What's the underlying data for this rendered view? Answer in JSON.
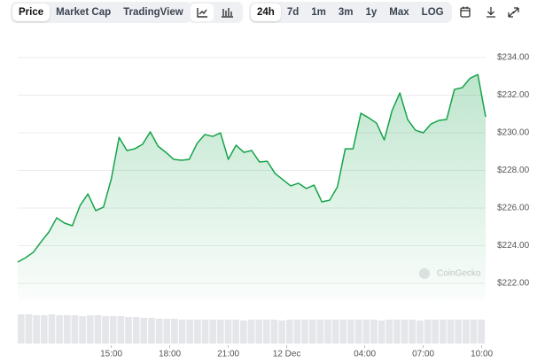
{
  "toolbar": {
    "views": [
      "Price",
      "Market Cap",
      "TradingView"
    ],
    "active_view": 0,
    "ranges": [
      "24h",
      "7d",
      "1m",
      "3m",
      "1y",
      "Max",
      "LOG"
    ],
    "active_range": 0
  },
  "chart_data": {
    "type": "area",
    "watermark": "CoinGecko",
    "color": "#16a34a",
    "x": [
      10.2,
      10.6,
      11.0,
      11.4,
      11.8,
      12.2,
      12.6,
      13.0,
      13.4,
      13.8,
      14.2,
      14.6,
      15.0,
      15.4,
      15.8,
      16.2,
      16.6,
      17.0,
      17.4,
      17.8,
      18.2,
      18.6,
      19.0,
      19.4,
      19.8,
      20.2,
      20.6,
      21.0,
      21.4,
      21.8,
      22.2,
      22.6,
      23.0,
      23.4,
      23.8,
      24.2,
      24.6,
      25.0,
      25.4,
      25.8,
      26.2,
      26.6,
      27.0,
      27.4,
      27.8,
      28.2,
      28.6,
      29.0,
      29.4,
      29.8,
      30.2,
      30.6,
      31.0,
      31.4,
      31.8,
      32.2,
      32.6,
      33.0,
      33.4,
      33.8,
      34.2
    ],
    "values": [
      223.13,
      223.36,
      223.65,
      224.21,
      224.73,
      225.48,
      225.2,
      225.06,
      226.14,
      226.75,
      225.86,
      226.05,
      227.55,
      229.76,
      229.06,
      229.15,
      229.39,
      230.05,
      229.29,
      228.96,
      228.59,
      228.54,
      228.59,
      229.44,
      229.91,
      229.81,
      230.0,
      228.59,
      229.34,
      228.96,
      229.06,
      228.45,
      228.49,
      227.84,
      227.51,
      227.18,
      227.32,
      227.04,
      227.22,
      226.33,
      226.42,
      227.13,
      229.15,
      229.15,
      231.04,
      230.8,
      230.52,
      229.62,
      231.18,
      232.12,
      230.71,
      230.14,
      230.0,
      230.47,
      230.66,
      230.71,
      232.31,
      232.4,
      232.9,
      233.1,
      230.85
    ],
    "volume": [
      33,
      33,
      32,
      32,
      33,
      32,
      32,
      32,
      31,
      32,
      32,
      31,
      31,
      31,
      30,
      30,
      29,
      29,
      28,
      28,
      28,
      27,
      27,
      27,
      27,
      27,
      27,
      27,
      27,
      26,
      27,
      27,
      27,
      27,
      26,
      27,
      27,
      27,
      27,
      27,
      27,
      27,
      27,
      27,
      27,
      27,
      27,
      26,
      27,
      27,
      27,
      27,
      26,
      27,
      27,
      27,
      27,
      27,
      27,
      27,
      27
    ],
    "xlim": [
      10.2,
      34.2
    ],
    "xticks": [
      {
        "value": 15,
        "label": "15:00"
      },
      {
        "value": 18,
        "label": "18:00"
      },
      {
        "value": 21,
        "label": "21:00"
      },
      {
        "value": 24,
        "label": "12 Dec"
      },
      {
        "value": 28,
        "label": "04:00"
      },
      {
        "value": 31,
        "label": "07:00"
      },
      {
        "value": 34,
        "label": "10:00"
      }
    ],
    "ylim": [
      221.6,
      234.5
    ],
    "yticks": [
      {
        "value": 222,
        "label": "$222.00"
      },
      {
        "value": 224,
        "label": "$224.00"
      },
      {
        "value": 226,
        "label": "$226.00"
      },
      {
        "value": 228,
        "label": "$228.00"
      },
      {
        "value": 230,
        "label": "$230.00"
      },
      {
        "value": 232,
        "label": "$232.00"
      },
      {
        "value": 234,
        "label": "$234.00"
      }
    ],
    "grid": true
  }
}
